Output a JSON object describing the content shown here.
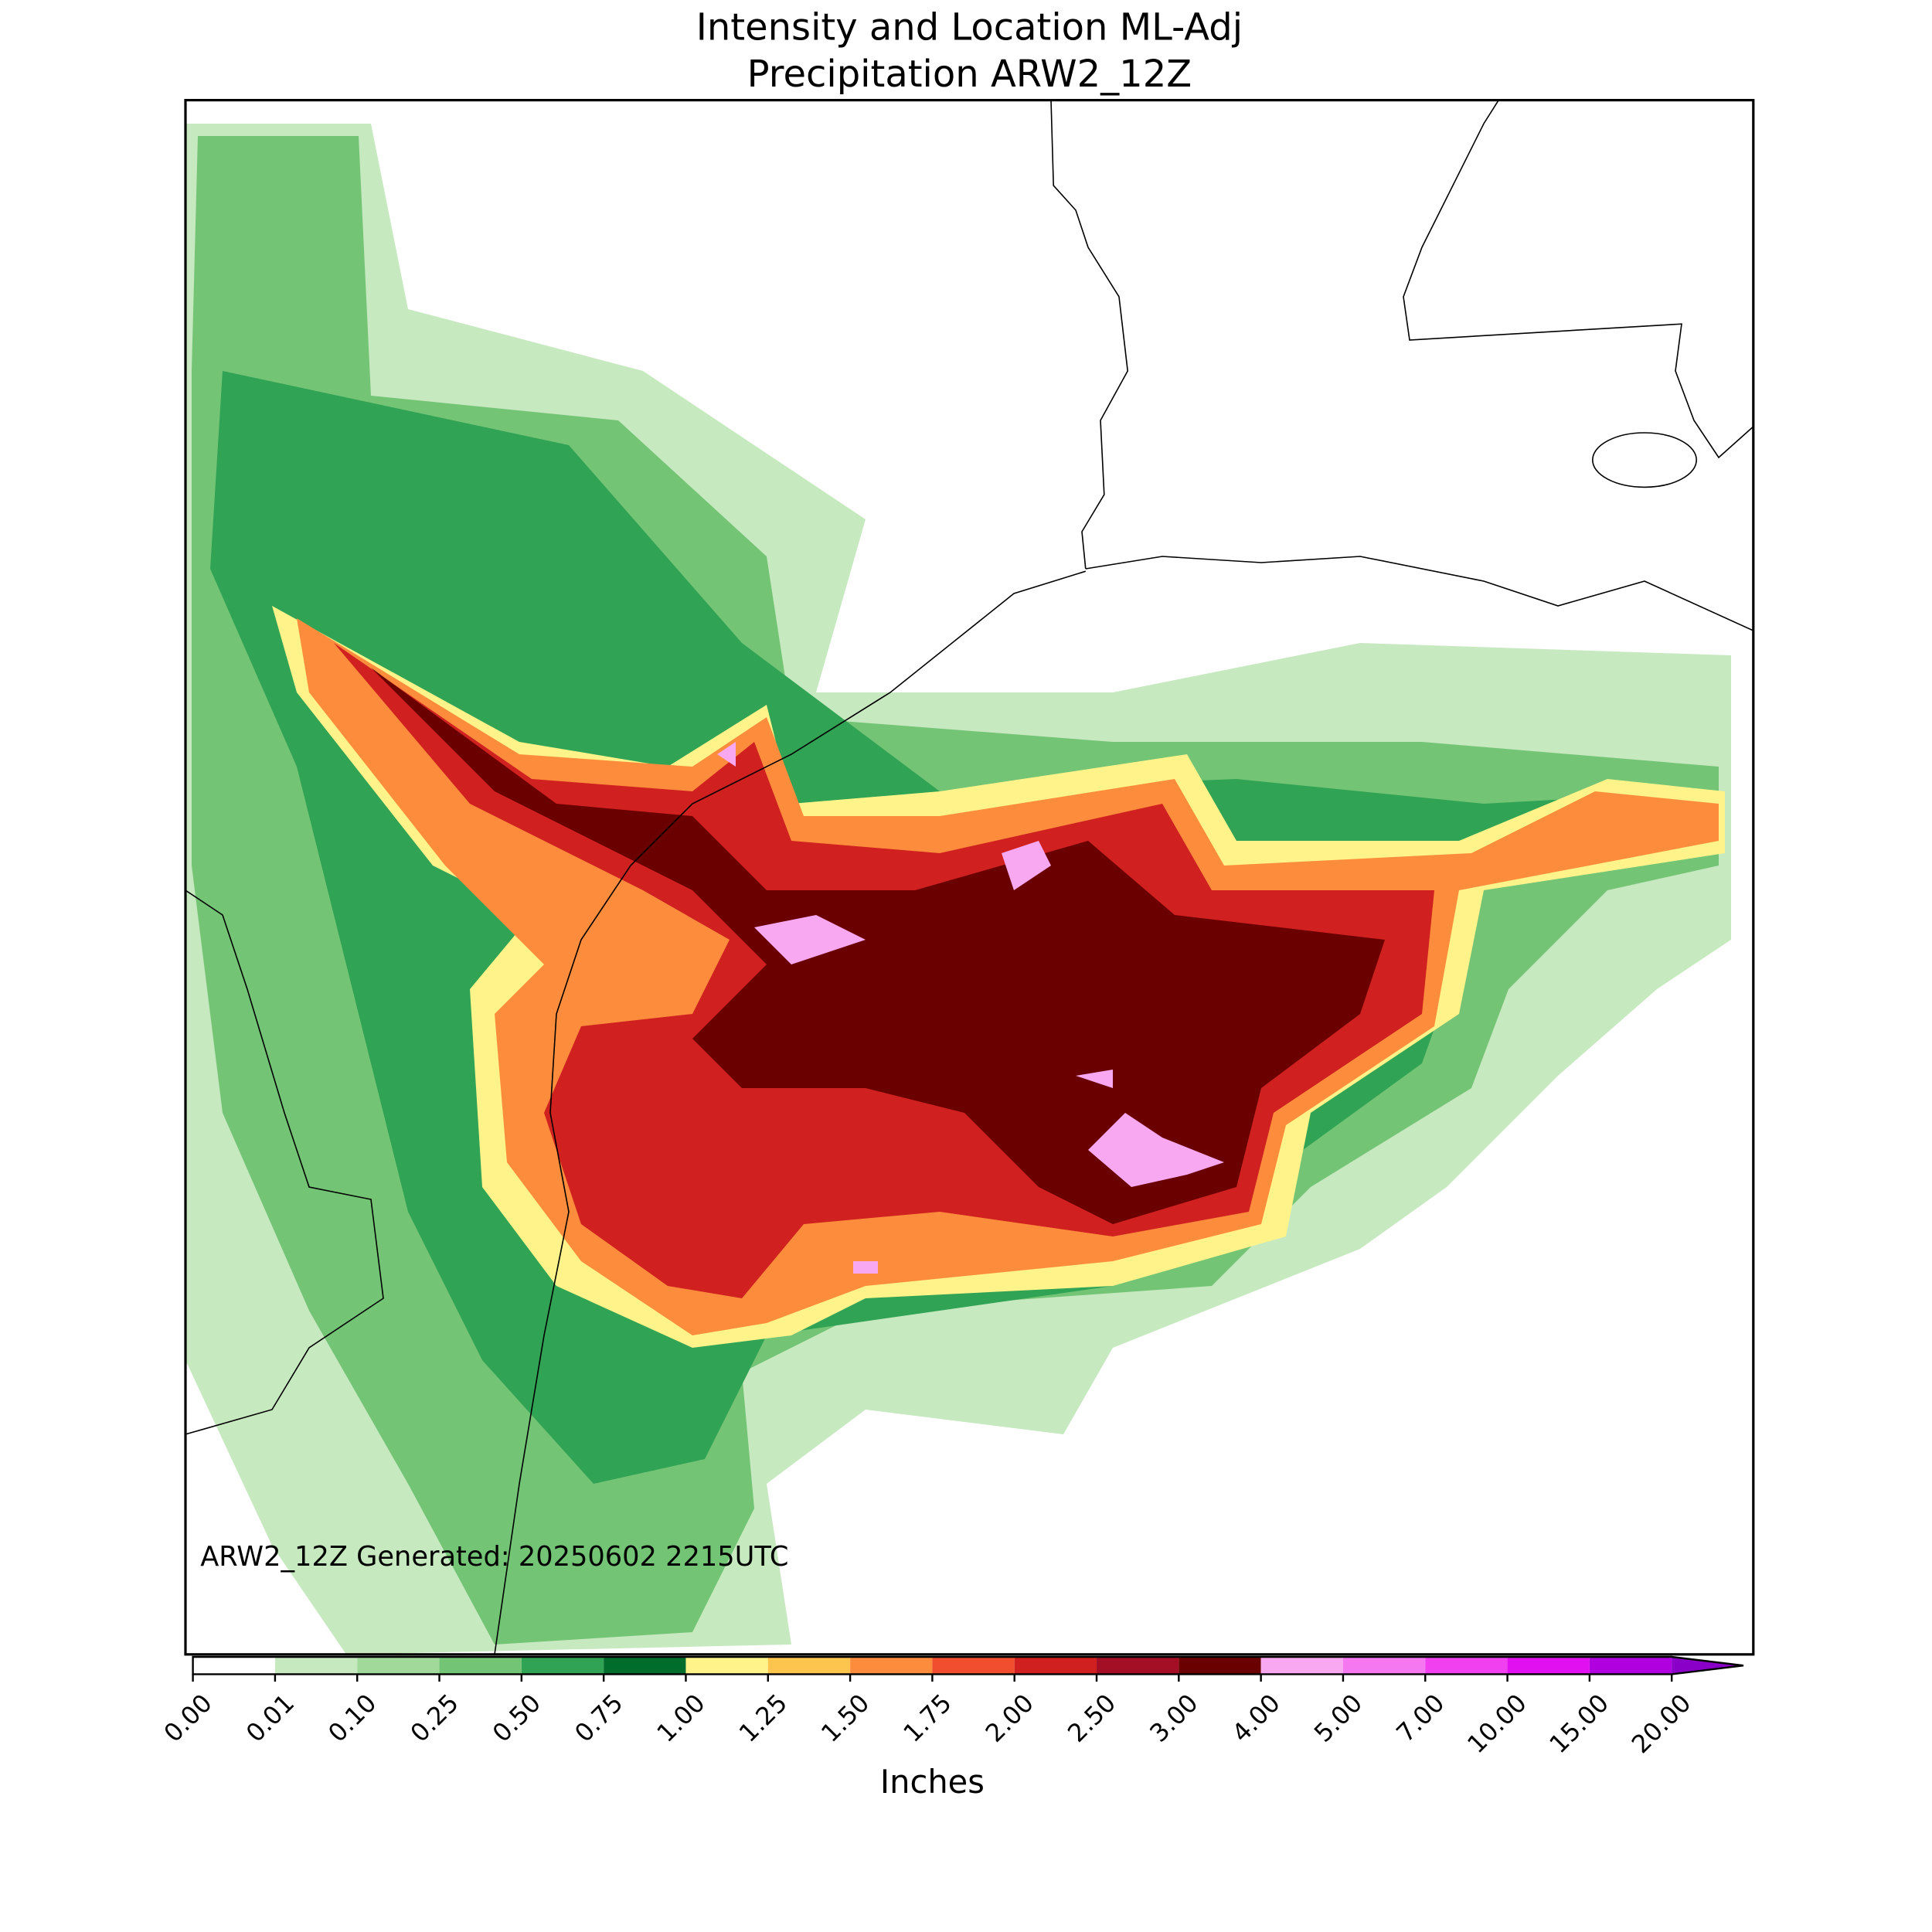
{
  "title": [
    "Intensity and Location ML-Adj",
    "Precipitation ARW2_12Z"
  ],
  "annotation": "ARW2_12Z Generated: 20250602 2215UTC",
  "colorbar": {
    "label": "Inches",
    "extend": "max",
    "extend_color": "#8a00c8",
    "ticks": [
      {
        "value": 0,
        "label": "0.00"
      },
      {
        "value": 0.01,
        "label": "0.01"
      },
      {
        "value": 0.1,
        "label": "0.10"
      },
      {
        "value": 0.25,
        "label": "0.25"
      },
      {
        "value": 0.5,
        "label": "0.50"
      },
      {
        "value": 0.75,
        "label": "0.75"
      },
      {
        "value": 1,
        "label": "1.00"
      },
      {
        "value": 1.25,
        "label": "1.25"
      },
      {
        "value": 1.5,
        "label": "1.50"
      },
      {
        "value": 1.75,
        "label": "1.75"
      },
      {
        "value": 2,
        "label": "2.00"
      },
      {
        "value": 2.5,
        "label": "2.50"
      },
      {
        "value": 3,
        "label": "3.00"
      },
      {
        "value": 4,
        "label": "4.00"
      },
      {
        "value": 5,
        "label": "5.00"
      },
      {
        "value": 7,
        "label": "7.00"
      },
      {
        "value": 10,
        "label": "10.00"
      },
      {
        "value": 15,
        "label": "15.00"
      },
      {
        "value": 20,
        "label": "20.00"
      }
    ],
    "colors": [
      "#ffffff",
      "#c7e9c0",
      "#a1d99b",
      "#74c476",
      "#31a354",
      "#006d2c",
      "#fff38a",
      "#fdc44e",
      "#fd8d3c",
      "#f04e2f",
      "#d0201f",
      "#a50f26",
      "#6b0000",
      "#f7a8f0",
      "#f578f0",
      "#f040f0",
      "#e010f0",
      "#b000e0"
    ]
  }
}
